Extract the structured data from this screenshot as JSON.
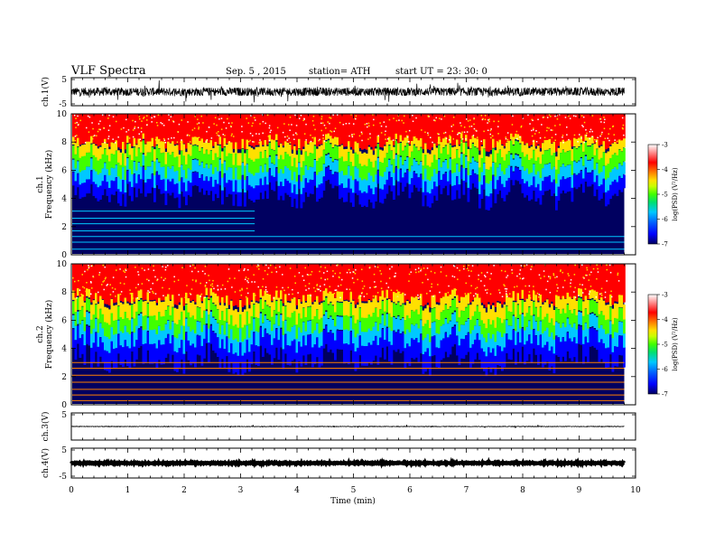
{
  "header": {
    "title": "VLF  Spectra",
    "date": "Sep. 5  , 2015",
    "station": "station= ATH",
    "start": "start  UT  =   23: 30: 0"
  },
  "chart_data": [
    {
      "id": "ch1-waveform",
      "type": "line",
      "ylabel": "ch.1(V)",
      "ylim": [
        -5,
        5
      ],
      "yticks": [
        "5",
        "-5"
      ],
      "xlim": [
        0,
        10
      ],
      "data_end_min": 9.8,
      "level": 0,
      "amplitude": 1.5
    },
    {
      "id": "ch1-spectrogram",
      "type": "heatmap",
      "ylabel": "ch.1\nFrequency  (kHz)",
      "ylim": [
        0,
        10
      ],
      "yticks": [
        "0",
        "2",
        "4",
        "6",
        "8",
        "10"
      ],
      "xlim": [
        0,
        10
      ],
      "data_end_min": 9.8,
      "colorbar": {
        "label": "log(PSD) (V²/Hz)",
        "range": [
          -7,
          -3
        ],
        "ticks": [
          "-3",
          "-4",
          "-5",
          "-6",
          "-7"
        ]
      },
      "band_edges_khz": {
        "red_above": 8.0,
        "yellow": 7.2,
        "green": 6.2,
        "cyan": 5.3,
        "blue": 4.3
      },
      "tone_lines_khz": [
        0.4,
        0.9,
        1.3,
        1.7,
        2.2,
        2.6,
        3.1
      ]
    },
    {
      "id": "ch2-spectrogram",
      "type": "heatmap",
      "ylabel": "ch.2\nFrequency  (kHz)",
      "ylim": [
        0,
        10
      ],
      "yticks": [
        "0",
        "2",
        "4",
        "6",
        "8",
        "10"
      ],
      "xlim": [
        0,
        10
      ],
      "data_end_min": 9.8,
      "colorbar": {
        "label": "log(PSD) (V²/Hz)",
        "range": [
          -7,
          -3
        ],
        "ticks": [
          "-3",
          "-4",
          "-5",
          "-6",
          "-7"
        ]
      },
      "band_edges_khz": {
        "red_above": 7.6,
        "yellow": 6.6,
        "green": 5.6,
        "cyan": 4.6,
        "blue": 3.2
      },
      "tone_lines_khz": [
        0.3,
        0.7,
        1.1,
        1.6,
        2.1,
        2.6,
        3.0
      ]
    },
    {
      "id": "ch3-waveform",
      "type": "line",
      "ylabel": "ch.3(V)",
      "ylim": [
        -5,
        5
      ],
      "yticks": [
        "5"
      ],
      "xlim": [
        0,
        10
      ],
      "data_end_min": 9.8,
      "level": 0,
      "amplitude": 0.1
    },
    {
      "id": "ch4-waveform",
      "type": "line",
      "ylabel": "ch.4(V)",
      "ylim": [
        -5,
        5
      ],
      "yticks": [
        "5",
        "-5"
      ],
      "xlim": [
        0,
        10
      ],
      "data_end_min": 9.8,
      "level": 0,
      "amplitude": 0.15
    }
  ],
  "x_axis": {
    "label": "Time  (min)",
    "ticks": [
      "0",
      "1",
      "2",
      "3",
      "4",
      "5",
      "6",
      "7",
      "8",
      "9",
      "10"
    ]
  },
  "colors": {
    "colormap": [
      "#000060",
      "#0000ff",
      "#0064ff",
      "#00c8ff",
      "#00e070",
      "#40ff00",
      "#c8ff00",
      "#ffe000",
      "#ff8000",
      "#ff0000",
      "#ffffff"
    ],
    "waveform": "#000000",
    "background": "#ffffff"
  }
}
